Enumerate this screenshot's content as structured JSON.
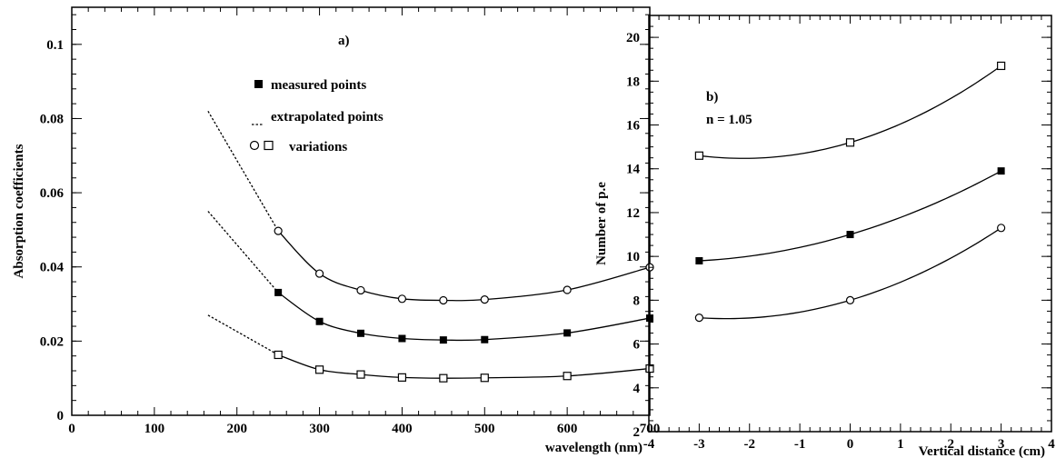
{
  "chart_data": [
    {
      "id": "a",
      "type": "line",
      "panel_label": "a)",
      "xlabel": "wavelength (nm)",
      "ylabel": "Absorption coefficients",
      "xlim": [
        0,
        700
      ],
      "ylim": [
        0,
        0.11
      ],
      "x_ticks": [
        0,
        100,
        200,
        300,
        400,
        500,
        600,
        700
      ],
      "y_ticks": [
        0,
        0.02,
        0.04,
        0.06,
        0.08,
        0.1
      ],
      "x_tick_labels": [
        "0",
        "100",
        "200",
        "300",
        "400",
        "500",
        "600",
        "700"
      ],
      "y_tick_labels": [
        "0",
        "0.02",
        "0.04",
        "0.06",
        "0.08",
        "0.1"
      ],
      "legend": [
        {
          "marker": "filled-square",
          "label": "measured points"
        },
        {
          "marker": "dashed-line",
          "label": "extrapolated points"
        },
        {
          "marker": "circle-and-open-square",
          "label": "variations"
        }
      ],
      "series": [
        {
          "marker": "circle",
          "x": [
            250,
            300,
            350,
            400,
            450,
            500,
            600,
            700
          ],
          "values": [
            0.0497,
            0.0382,
            0.0337,
            0.0314,
            0.031,
            0.0312,
            0.0338,
            0.0399
          ],
          "extrapolated": {
            "x": [
              165,
              250
            ],
            "values": [
              0.082,
              0.0497
            ]
          }
        },
        {
          "marker": "filled-square",
          "x": [
            250,
            300,
            350,
            400,
            450,
            500,
            600,
            700
          ],
          "values": [
            0.0331,
            0.0253,
            0.0221,
            0.0207,
            0.0203,
            0.0204,
            0.0222,
            0.0262
          ],
          "extrapolated": {
            "x": [
              165,
              250
            ],
            "values": [
              0.055,
              0.0331
            ]
          }
        },
        {
          "marker": "open-square",
          "x": [
            250,
            300,
            350,
            400,
            450,
            500,
            600,
            700
          ],
          "values": [
            0.0163,
            0.0123,
            0.011,
            0.0102,
            0.01,
            0.0101,
            0.0106,
            0.0126
          ],
          "extrapolated": {
            "x": [
              165,
              250
            ],
            "values": [
              0.027,
              0.0163
            ]
          }
        }
      ]
    },
    {
      "id": "b",
      "type": "line",
      "panel_label": "b)",
      "annotation": "n = 1.05",
      "xlabel": "Vertical distance (cm)",
      "ylabel": "Number of p.e",
      "xlim": [
        -4,
        4
      ],
      "ylim": [
        2,
        21
      ],
      "x_ticks": [
        -4,
        -3,
        -2,
        -1,
        0,
        1,
        2,
        3,
        4
      ],
      "y_ticks": [
        2,
        4,
        6,
        8,
        10,
        12,
        14,
        16,
        18,
        20
      ],
      "x_tick_labels": [
        "-4",
        "-3",
        "-2",
        "-1",
        "0",
        "1",
        "2",
        "3",
        "4"
      ],
      "y_tick_labels": [
        "2",
        "4",
        "6",
        "8",
        "10",
        "12",
        "14",
        "16",
        "18",
        "20"
      ],
      "series": [
        {
          "marker": "open-square",
          "x": [
            -3,
            0,
            3
          ],
          "values": [
            14.6,
            15.2,
            18.7
          ]
        },
        {
          "marker": "filled-square",
          "x": [
            -3,
            0,
            3
          ],
          "values": [
            9.8,
            11.0,
            13.9
          ]
        },
        {
          "marker": "circle",
          "x": [
            -3,
            0,
            3
          ],
          "values": [
            7.2,
            8.0,
            11.3
          ]
        }
      ]
    }
  ]
}
